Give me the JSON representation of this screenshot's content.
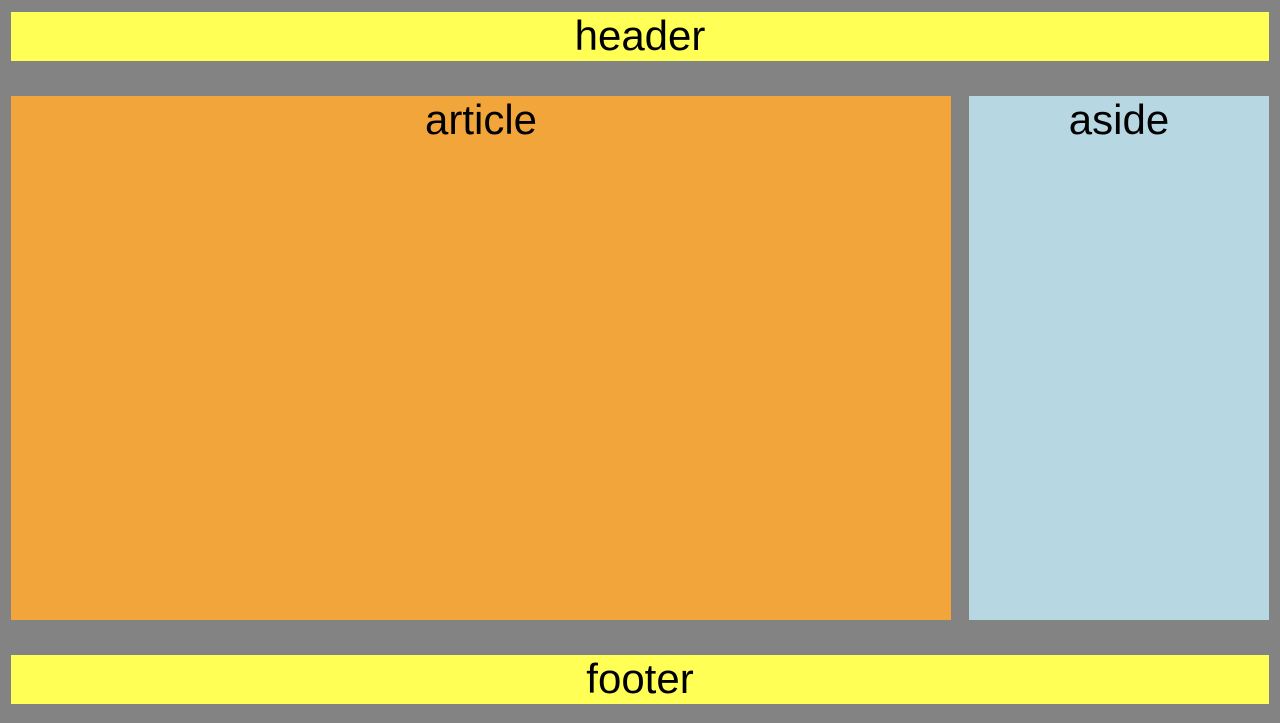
{
  "colors": {
    "background": "#838383",
    "header": "#ffff55",
    "article": "#f2a53b",
    "aside": "#b7d8e2",
    "footer": "#ffff55",
    "text": "#000000"
  },
  "layout": {
    "header": {
      "label": "header"
    },
    "article": {
      "label": "article"
    },
    "aside": {
      "label": "aside"
    },
    "footer": {
      "label": "footer"
    }
  }
}
